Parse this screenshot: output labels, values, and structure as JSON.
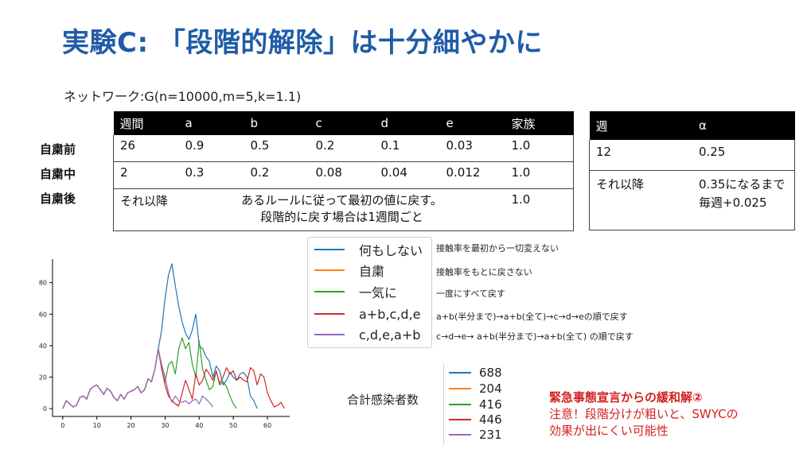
{
  "title": "実験C: 「段階的解除」は十分細やかに",
  "network": "ネットワーク:G(n=10000,m=5,k=1.1)",
  "table1": {
    "headers": [
      "週間",
      "a",
      "b",
      "c",
      "d",
      "e",
      "家族"
    ],
    "row_labels": [
      "自粛前",
      "自粛中",
      "自粛後"
    ],
    "rows": [
      [
        "26",
        "0.9",
        "0.5",
        "0.2",
        "0.1",
        "0.03",
        "1.0"
      ],
      [
        "2",
        "0.3",
        "0.2",
        "0.08",
        "0.04",
        "0.012",
        "1.0"
      ]
    ],
    "after": {
      "weeks": "それ以降",
      "rule_line1": "あるルールに従って最初の値に戻す。",
      "rule_line2": "段階的に戻す場合は1週間ごと",
      "family": "1.0"
    }
  },
  "table2": {
    "headers": [
      "週",
      "α"
    ],
    "rows": [
      [
        "12",
        "0.25"
      ],
      [
        "それ以降",
        "0.35になるまで毎週+0.025"
      ]
    ]
  },
  "legend": [
    {
      "label": "何もしない",
      "color": "#1f77b4",
      "desc": "接触率を最初から一切変えない"
    },
    {
      "label": "自粛",
      "color": "#ff7f0e",
      "desc": "接触率をもとに戻さない"
    },
    {
      "label": "一気に",
      "color": "#2ca02c",
      "desc": "一度にすべて戻す"
    },
    {
      "label": "a+b,c,d,e",
      "color": "#d62728",
      "desc": "a+b(半分まで)→a+b(全て)→c→d→eの順で戻す"
    },
    {
      "label": "c,d,e,a+b",
      "color": "#9467bd",
      "desc": "c→d→e→ a+b(半分まで)→a+b(全て) の順で戻す"
    }
  ],
  "totals_label": "合計感染者数",
  "totals": [
    "688",
    "204",
    "416",
    "446",
    "231"
  ],
  "note": {
    "title": "緊急事態宣言からの緩和解②",
    "line1": "注意！段階分けが粗いと、SWYCの",
    "line2": "効果が出にくい可能性"
  },
  "chart_data": {
    "type": "line",
    "xlim": [
      -3,
      67
    ],
    "ylim": [
      -5,
      95
    ],
    "xticks": [
      0,
      10,
      20,
      30,
      40,
      50,
      60
    ],
    "yticks": [
      0,
      20,
      40,
      60,
      80
    ],
    "series": [
      {
        "name": "何もしない",
        "color": "#1f77b4",
        "x": [
          0,
          1,
          2,
          3,
          4,
          5,
          6,
          7,
          8,
          9,
          10,
          11,
          12,
          13,
          14,
          15,
          16,
          17,
          18,
          19,
          20,
          21,
          22,
          23,
          24,
          25,
          26,
          27,
          28,
          29,
          30,
          31,
          32,
          33,
          34,
          35,
          36,
          37,
          38,
          39,
          40,
          41,
          42,
          43,
          44,
          45,
          46,
          47,
          48,
          49,
          50,
          51,
          52,
          53,
          54,
          55,
          56,
          57
        ],
        "y": [
          0,
          5,
          3,
          1,
          2,
          7,
          8,
          6,
          12,
          14,
          15,
          12,
          9,
          13,
          11,
          7,
          5,
          9,
          6,
          10,
          11,
          12,
          14,
          10,
          12,
          19,
          17,
          25,
          38,
          50,
          70,
          85,
          92,
          78,
          65,
          55,
          48,
          44,
          50,
          60,
          40,
          38,
          33,
          30,
          20,
          27,
          24,
          15,
          18,
          23,
          20,
          18,
          22,
          23,
          20,
          8,
          5,
          0
        ]
      },
      {
        "name": "自粛",
        "color": "#ff7f0e",
        "x": [
          0,
          1,
          2,
          3,
          4,
          5,
          6,
          7,
          8,
          9,
          10,
          11,
          12,
          13,
          14,
          15,
          16,
          17,
          18,
          19,
          20,
          21,
          22,
          23,
          24,
          25,
          26,
          27,
          28,
          29,
          30,
          31,
          32,
          33,
          34
        ],
        "y": [
          0,
          5,
          3,
          1,
          2,
          7,
          8,
          6,
          12,
          14,
          15,
          12,
          9,
          13,
          11,
          7,
          5,
          9,
          6,
          10,
          11,
          12,
          14,
          10,
          12,
          19,
          17,
          25,
          38,
          26,
          15,
          8,
          5,
          3,
          1
        ]
      },
      {
        "name": "一気に",
        "color": "#2ca02c",
        "x": [
          0,
          1,
          2,
          3,
          4,
          5,
          6,
          7,
          8,
          9,
          10,
          11,
          12,
          13,
          14,
          15,
          16,
          17,
          18,
          19,
          20,
          21,
          22,
          23,
          24,
          25,
          26,
          27,
          28,
          29,
          30,
          31,
          32,
          33,
          34,
          35,
          36,
          37,
          38,
          39,
          40,
          41,
          42,
          43,
          44,
          45,
          46,
          47,
          48,
          49,
          50,
          51
        ],
        "y": [
          0,
          5,
          3,
          1,
          2,
          7,
          8,
          6,
          12,
          14,
          15,
          12,
          9,
          13,
          11,
          7,
          5,
          9,
          6,
          10,
          11,
          12,
          14,
          10,
          12,
          19,
          17,
          25,
          38,
          25,
          17,
          28,
          30,
          22,
          38,
          45,
          38,
          42,
          28,
          20,
          43,
          25,
          18,
          12,
          14,
          24,
          15,
          17,
          14,
          8,
          3,
          0
        ]
      },
      {
        "name": "a+b,c,d,e",
        "color": "#d62728",
        "x": [
          0,
          1,
          2,
          3,
          4,
          5,
          6,
          7,
          8,
          9,
          10,
          11,
          12,
          13,
          14,
          15,
          16,
          17,
          18,
          19,
          20,
          21,
          22,
          23,
          24,
          25,
          26,
          27,
          28,
          29,
          30,
          31,
          32,
          33,
          34,
          35,
          36,
          37,
          38,
          39,
          40,
          41,
          42,
          43,
          44,
          45,
          46,
          47,
          48,
          49,
          50,
          51,
          52,
          53,
          54,
          55,
          56,
          57,
          58,
          59,
          60,
          61,
          62,
          63,
          64,
          65
        ],
        "y": [
          0,
          5,
          3,
          1,
          2,
          7,
          8,
          6,
          12,
          14,
          15,
          12,
          9,
          13,
          11,
          7,
          5,
          9,
          6,
          10,
          11,
          12,
          14,
          10,
          12,
          19,
          17,
          25,
          38,
          26,
          15,
          8,
          5,
          3,
          2,
          10,
          18,
          12,
          6,
          22,
          15,
          18,
          25,
          22,
          18,
          24,
          16,
          20,
          26,
          22,
          24,
          18,
          20,
          18,
          17,
          26,
          24,
          15,
          22,
          20,
          10,
          5,
          1,
          2,
          4,
          0
        ]
      },
      {
        "name": "c,d,e,a+b",
        "color": "#9467bd",
        "x": [
          0,
          1,
          2,
          3,
          4,
          5,
          6,
          7,
          8,
          9,
          10,
          11,
          12,
          13,
          14,
          15,
          16,
          17,
          18,
          19,
          20,
          21,
          22,
          23,
          24,
          25,
          26,
          27,
          28,
          29,
          30,
          31,
          32,
          33,
          34,
          35,
          36,
          37,
          38,
          39,
          40,
          41,
          42,
          43,
          44
        ],
        "y": [
          0,
          5,
          3,
          1,
          2,
          7,
          8,
          6,
          12,
          14,
          15,
          12,
          9,
          13,
          11,
          7,
          5,
          9,
          6,
          10,
          11,
          12,
          14,
          10,
          12,
          19,
          17,
          25,
          38,
          28,
          20,
          10,
          4,
          8,
          5,
          4,
          5,
          3,
          5,
          6,
          3,
          8,
          6,
          4,
          1
        ]
      }
    ]
  }
}
